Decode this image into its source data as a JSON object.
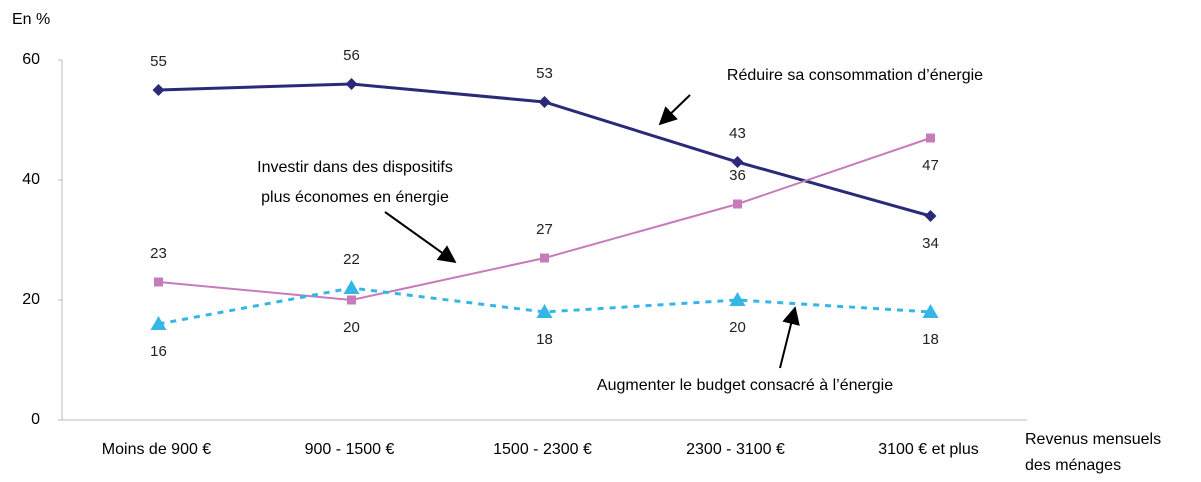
{
  "chart_data": {
    "type": "line",
    "ylabel": "En %",
    "xlabel": [
      "Revenus mensuels",
      "des ménages"
    ],
    "categories": [
      "Moins de 900 €",
      "900 - 1500 €",
      "1500 - 2300 €",
      "2300 - 3100 €",
      "3100 € et plus"
    ],
    "ylim": [
      0,
      60
    ],
    "yticks": [
      0,
      20,
      40,
      60
    ],
    "grid": false,
    "series": [
      {
        "name": [
          "Réduire sa consommation d’énergie"
        ],
        "color": "#2b2a78",
        "marker": "diamond",
        "dash": false,
        "values": [
          55,
          56,
          53,
          43,
          34
        ],
        "label_pos": [
          "above",
          "above",
          "above",
          "above",
          "below"
        ]
      },
      {
        "name": [
          "Investir dans des dispositifs",
          "plus économes en énergie"
        ],
        "color": "#c77bbb",
        "marker": "square",
        "dash": false,
        "values": [
          23,
          20,
          27,
          36,
          47
        ],
        "label_pos": [
          "above",
          "below",
          "above",
          "above",
          "below"
        ]
      },
      {
        "name": [
          "Augmenter le budget consacré à l’énergie"
        ],
        "color": "#35b7e6",
        "marker": "triangle",
        "dash": true,
        "values": [
          16,
          22,
          18,
          20,
          18
        ],
        "label_pos": [
          "below",
          "above",
          "below",
          "below",
          "below"
        ]
      }
    ]
  }
}
